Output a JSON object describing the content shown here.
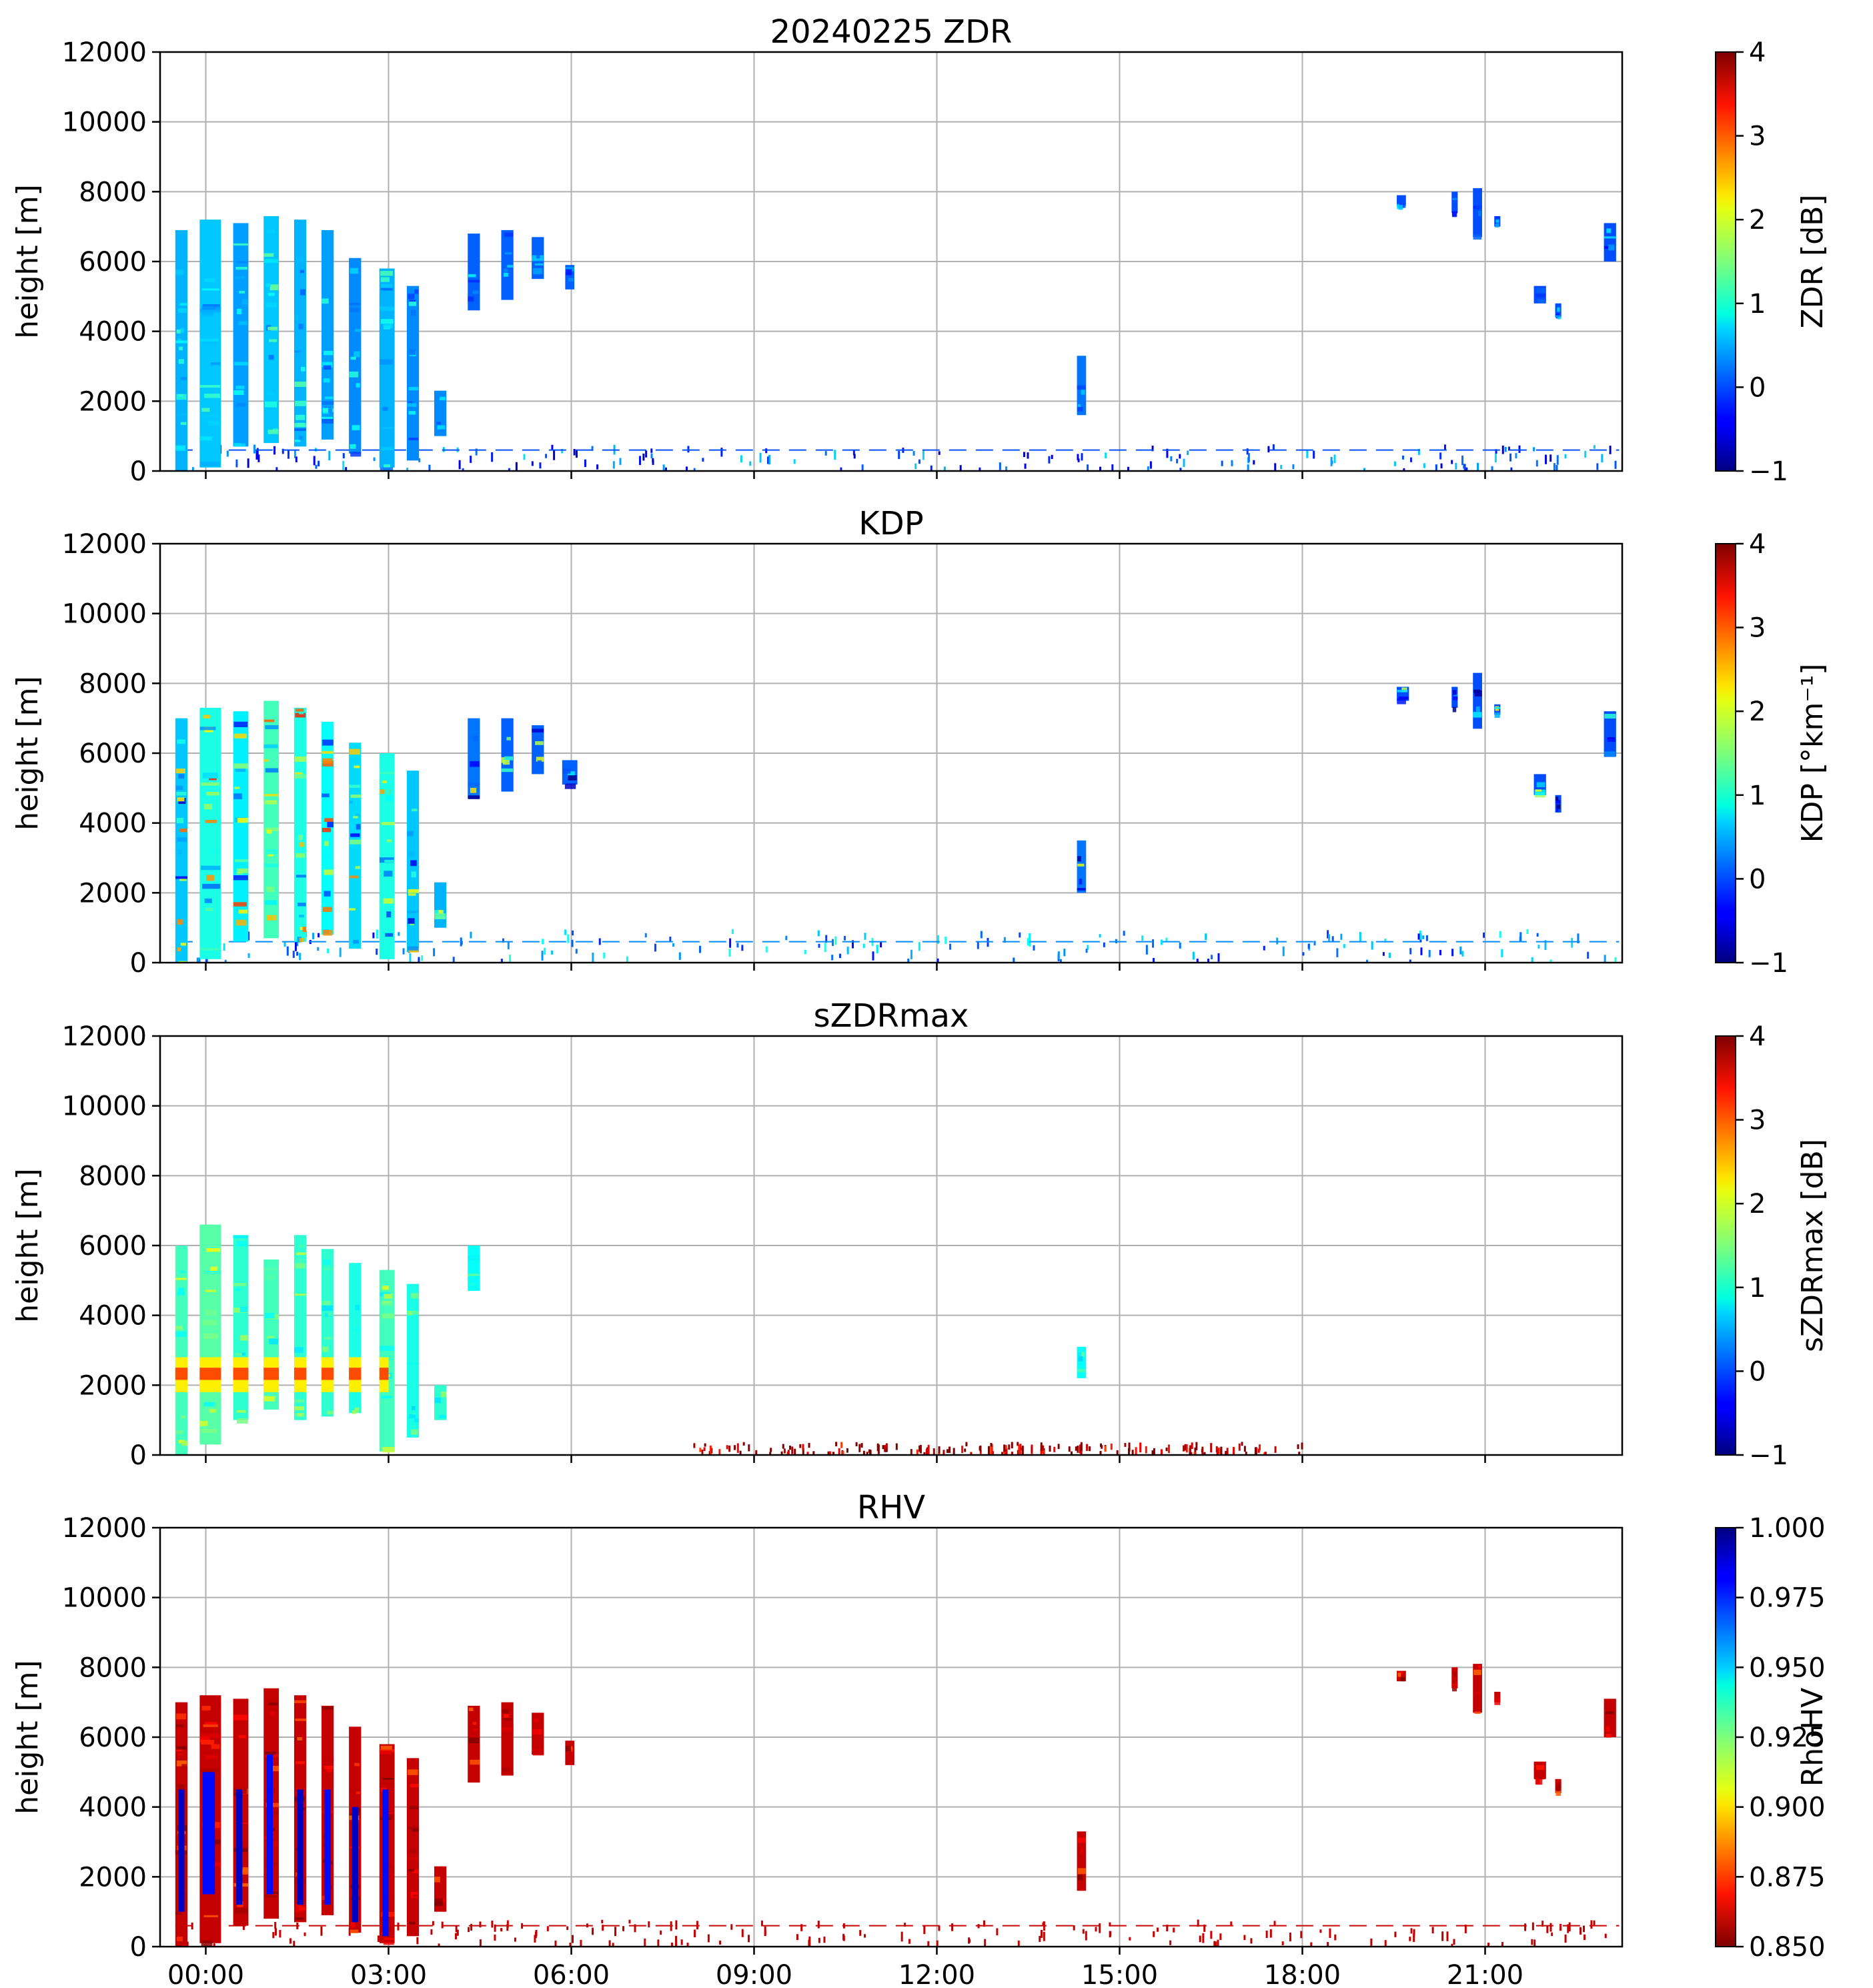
{
  "chart_data": [
    {
      "type": "heatmap",
      "title": "20240225 ZDR",
      "ylabel": "height [m]",
      "xlabel": "",
      "ylim": [
        0,
        12000
      ],
      "y_ticks": [
        "0",
        "2000",
        "4000",
        "6000",
        "8000",
        "10000",
        "12000"
      ],
      "x_range_hours": [
        -0.75,
        23.25
      ],
      "x_ticks": [
        "00:00",
        "03:00",
        "06:00",
        "09:00",
        "12:00",
        "15:00",
        "18:00",
        "21:00"
      ],
      "show_xtick_labels": false,
      "grid": true,
      "colorbar": {
        "label": "ZDR [dB]",
        "range": [
          -1,
          4
        ],
        "ticks": [
          "−1",
          "0",
          "1",
          "2",
          "3",
          "4"
        ],
        "reversed": false
      },
      "echo_blocks": [
        {
          "t0": -0.5,
          "t1": -0.3,
          "h0": 0,
          "h1": 6900,
          "value": 0.5
        },
        {
          "t0": -0.1,
          "t1": 0.25,
          "h0": 100,
          "h1": 7200,
          "value": 0.6
        },
        {
          "t0": 0.45,
          "t1": 0.7,
          "h0": 700,
          "h1": 7100,
          "value": 0.4
        },
        {
          "t0": 0.95,
          "t1": 1.2,
          "h0": 800,
          "h1": 7300,
          "value": 0.6
        },
        {
          "t0": 1.45,
          "t1": 1.65,
          "h0": 700,
          "h1": 7200,
          "value": 0.5
        },
        {
          "t0": 1.9,
          "t1": 2.1,
          "h0": 900,
          "h1": 6900,
          "value": 0.4
        },
        {
          "t0": 2.35,
          "t1": 2.55,
          "h0": 500,
          "h1": 6100,
          "value": 0.3
        },
        {
          "t0": 2.85,
          "t1": 3.1,
          "h0": 100,
          "h1": 5800,
          "value": 0.5
        },
        {
          "t0": 3.3,
          "t1": 3.5,
          "h0": 300,
          "h1": 5300,
          "value": 0.3
        },
        {
          "t0": 3.75,
          "t1": 3.95,
          "h0": 1000,
          "h1": 2300,
          "value": 0.3
        },
        {
          "t0": 4.3,
          "t1": 4.5,
          "h0": 4600,
          "h1": 6800,
          "value": 0.1
        },
        {
          "t0": 4.85,
          "t1": 5.05,
          "h0": 4900,
          "h1": 6900,
          "value": 0.1
        },
        {
          "t0": 5.35,
          "t1": 5.55,
          "h0": 5500,
          "h1": 6700,
          "value": 0.1
        },
        {
          "t0": 5.9,
          "t1": 6.05,
          "h0": 5200,
          "h1": 5900,
          "value": 0.1
        },
        {
          "t0": 14.3,
          "t1": 14.45,
          "h0": 1600,
          "h1": 3300,
          "value": 0.2
        },
        {
          "t0": 19.55,
          "t1": 19.7,
          "h0": 7600,
          "h1": 7900,
          "value": 0.0
        },
        {
          "t0": 20.45,
          "t1": 20.55,
          "h0": 7400,
          "h1": 8000,
          "value": 0.0
        },
        {
          "t0": 20.8,
          "t1": 20.95,
          "h0": 6700,
          "h1": 8100,
          "value": 0.0
        },
        {
          "t0": 21.15,
          "t1": 21.25,
          "h0": 7000,
          "h1": 7300,
          "value": 0.0
        },
        {
          "t0": 21.8,
          "t1": 22.0,
          "h0": 4800,
          "h1": 5300,
          "value": 0.0
        },
        {
          "t0": 22.15,
          "t1": 22.25,
          "h0": 4400,
          "h1": 4800,
          "value": 0.0
        },
        {
          "t0": 22.95,
          "t1": 23.15,
          "h0": 6000,
          "h1": 7100,
          "value": 0.0
        }
      ],
      "low_level_band": {
        "t0": -0.5,
        "t1": 23.2,
        "h0": 0,
        "h1": 700,
        "value": 0.0
      }
    },
    {
      "type": "heatmap",
      "title": "KDP",
      "ylabel": "height [m]",
      "xlabel": "",
      "ylim": [
        0,
        12000
      ],
      "y_ticks": [
        "0",
        "2000",
        "4000",
        "6000",
        "8000",
        "10000",
        "12000"
      ],
      "x_range_hours": [
        -0.75,
        23.25
      ],
      "x_ticks": [
        "00:00",
        "03:00",
        "06:00",
        "09:00",
        "12:00",
        "15:00",
        "18:00",
        "21:00"
      ],
      "show_xtick_labels": false,
      "grid": true,
      "colorbar": {
        "label": "KDP [°km⁻¹]",
        "range": [
          -1,
          4
        ],
        "ticks": [
          "−1",
          "0",
          "1",
          "2",
          "3",
          "4"
        ],
        "reversed": false
      },
      "echo_blocks": [
        {
          "t0": -0.5,
          "t1": -0.3,
          "h0": 0,
          "h1": 7000,
          "value": 0.6
        },
        {
          "t0": -0.1,
          "t1": 0.25,
          "h0": 100,
          "h1": 7300,
          "value": 1.0
        },
        {
          "t0": 0.45,
          "t1": 0.7,
          "h0": 600,
          "h1": 7200,
          "value": 0.8
        },
        {
          "t0": 0.95,
          "t1": 1.2,
          "h0": 700,
          "h1": 7500,
          "value": 1.2
        },
        {
          "t0": 1.45,
          "t1": 1.65,
          "h0": 600,
          "h1": 7300,
          "value": 1.0
        },
        {
          "t0": 1.9,
          "t1": 2.1,
          "h0": 800,
          "h1": 6900,
          "value": 0.9
        },
        {
          "t0": 2.35,
          "t1": 2.55,
          "h0": 400,
          "h1": 6300,
          "value": 0.7
        },
        {
          "t0": 2.85,
          "t1": 3.1,
          "h0": 100,
          "h1": 6000,
          "value": 1.0
        },
        {
          "t0": 3.3,
          "t1": 3.5,
          "h0": 300,
          "h1": 5500,
          "value": 0.6
        },
        {
          "t0": 3.75,
          "t1": 3.95,
          "h0": 1000,
          "h1": 2300,
          "value": 0.5
        },
        {
          "t0": 4.3,
          "t1": 4.5,
          "h0": 4700,
          "h1": 7000,
          "value": 0.2
        },
        {
          "t0": 4.85,
          "t1": 5.05,
          "h0": 4900,
          "h1": 7000,
          "value": 0.1
        },
        {
          "t0": 5.35,
          "t1": 5.55,
          "h0": 5400,
          "h1": 6800,
          "value": 0.1
        },
        {
          "t0": 5.85,
          "t1": 6.1,
          "h0": 5100,
          "h1": 5800,
          "value": 0.1
        },
        {
          "t0": 14.3,
          "t1": 14.45,
          "h0": 2000,
          "h1": 3500,
          "value": 0.2
        },
        {
          "t0": 19.55,
          "t1": 19.75,
          "h0": 7500,
          "h1": 7900,
          "value": 0.0
        },
        {
          "t0": 20.45,
          "t1": 20.55,
          "h0": 7300,
          "h1": 7900,
          "value": 0.0
        },
        {
          "t0": 20.8,
          "t1": 20.95,
          "h0": 6700,
          "h1": 8300,
          "value": 0.0
        },
        {
          "t0": 21.15,
          "t1": 21.25,
          "h0": 7100,
          "h1": 7400,
          "value": 0.0
        },
        {
          "t0": 21.8,
          "t1": 22.0,
          "h0": 4800,
          "h1": 5400,
          "value": 0.0
        },
        {
          "t0": 22.15,
          "t1": 22.25,
          "h0": 4300,
          "h1": 4800,
          "value": 0.0
        },
        {
          "t0": 22.95,
          "t1": 23.15,
          "h0": 5900,
          "h1": 7200,
          "value": 0.0
        }
      ],
      "low_level_band": {
        "t0": -0.5,
        "t1": 23.2,
        "h0": 0,
        "h1": 900,
        "value": 0.3
      }
    },
    {
      "type": "heatmap",
      "title": "sZDRmax",
      "ylabel": "height [m]",
      "xlabel": "",
      "ylim": [
        0,
        12000
      ],
      "y_ticks": [
        "0",
        "2000",
        "4000",
        "6000",
        "8000",
        "10000",
        "12000"
      ],
      "x_range_hours": [
        -0.75,
        23.25
      ],
      "x_ticks": [
        "00:00",
        "03:00",
        "06:00",
        "09:00",
        "12:00",
        "15:00",
        "18:00",
        "21:00"
      ],
      "show_xtick_labels": false,
      "grid": true,
      "colorbar": {
        "label": "sZDRmax [dB]",
        "range": [
          -1,
          4
        ],
        "ticks": [
          "−1",
          "0",
          "1",
          "2",
          "3",
          "4"
        ],
        "reversed": false
      },
      "echo_blocks": [
        {
          "t0": -0.5,
          "t1": -0.3,
          "h0": 0,
          "h1": 6000,
          "value": 1.2
        },
        {
          "t0": -0.1,
          "t1": 0.25,
          "h0": 300,
          "h1": 6600,
          "value": 1.3
        },
        {
          "t0": 0.45,
          "t1": 0.7,
          "h0": 1000,
          "h1": 6300,
          "value": 1.1
        },
        {
          "t0": 0.95,
          "t1": 1.2,
          "h0": 1300,
          "h1": 5600,
          "value": 1.2
        },
        {
          "t0": 1.45,
          "t1": 1.65,
          "h0": 1000,
          "h1": 6300,
          "value": 1.1
        },
        {
          "t0": 1.9,
          "t1": 2.1,
          "h0": 1100,
          "h1": 5900,
          "value": 1.1
        },
        {
          "t0": 2.35,
          "t1": 2.55,
          "h0": 1200,
          "h1": 5500,
          "value": 1.0
        },
        {
          "t0": 2.85,
          "t1": 3.1,
          "h0": 100,
          "h1": 5300,
          "value": 1.2
        },
        {
          "t0": 3.3,
          "t1": 3.5,
          "h0": 500,
          "h1": 4900,
          "value": 1.0
        },
        {
          "t0": 3.75,
          "t1": 3.95,
          "h0": 1000,
          "h1": 2000,
          "value": 1.1
        },
        {
          "t0": 4.3,
          "t1": 4.5,
          "h0": 4700,
          "h1": 6000,
          "value": 0.9
        },
        {
          "t0": 14.3,
          "t1": 14.45,
          "h0": 2200,
          "h1": 3100,
          "value": 0.9
        }
      ],
      "bright_band": {
        "t0": -0.5,
        "t1": 3.0,
        "h0": 1800,
        "h1": 2800,
        "value": 3.0
      },
      "low_level_band": {
        "t0": 8.0,
        "t1": 18.0,
        "h0": 0,
        "h1": 300,
        "value": 3.8
      }
    },
    {
      "type": "heatmap",
      "title": "RHV",
      "ylabel": "height [m]",
      "xlabel": "",
      "ylim": [
        0,
        12000
      ],
      "y_ticks": [
        "0",
        "2000",
        "4000",
        "6000",
        "8000",
        "10000",
        "12000"
      ],
      "x_range_hours": [
        -0.75,
        23.25
      ],
      "x_ticks": [
        "00:00",
        "03:00",
        "06:00",
        "09:00",
        "12:00",
        "15:00",
        "18:00",
        "21:00"
      ],
      "show_xtick_labels": true,
      "grid": true,
      "colorbar": {
        "label": "RhoHV",
        "range": [
          0.85,
          1.0
        ],
        "ticks": [
          "0.850",
          "0.875",
          "0.900",
          "0.925",
          "0.950",
          "0.975",
          "1.000"
        ],
        "reversed": true
      },
      "echo_blocks": [
        {
          "t0": -0.5,
          "t1": -0.3,
          "h0": 0,
          "h1": 7000,
          "value": 0.86
        },
        {
          "t0": -0.1,
          "t1": 0.25,
          "h0": 100,
          "h1": 7200,
          "value": 0.86
        },
        {
          "t0": 0.45,
          "t1": 0.7,
          "h0": 600,
          "h1": 7100,
          "value": 0.86
        },
        {
          "t0": 0.95,
          "t1": 1.2,
          "h0": 800,
          "h1": 7400,
          "value": 0.86
        },
        {
          "t0": 1.45,
          "t1": 1.65,
          "h0": 700,
          "h1": 7200,
          "value": 0.86
        },
        {
          "t0": 1.9,
          "t1": 2.1,
          "h0": 900,
          "h1": 6900,
          "value": 0.86
        },
        {
          "t0": 2.35,
          "t1": 2.55,
          "h0": 400,
          "h1": 6300,
          "value": 0.86
        },
        {
          "t0": 2.85,
          "t1": 3.1,
          "h0": 100,
          "h1": 5800,
          "value": 0.86
        },
        {
          "t0": 3.3,
          "t1": 3.5,
          "h0": 300,
          "h1": 5400,
          "value": 0.86
        },
        {
          "t0": 3.75,
          "t1": 3.95,
          "h0": 1000,
          "h1": 2300,
          "value": 0.86
        },
        {
          "t0": 4.3,
          "t1": 4.5,
          "h0": 4700,
          "h1": 6900,
          "value": 0.86
        },
        {
          "t0": 4.85,
          "t1": 5.05,
          "h0": 4900,
          "h1": 7000,
          "value": 0.86
        },
        {
          "t0": 5.35,
          "t1": 5.55,
          "h0": 5500,
          "h1": 6700,
          "value": 0.86
        },
        {
          "t0": 5.9,
          "t1": 6.05,
          "h0": 5200,
          "h1": 5900,
          "value": 0.86
        },
        {
          "t0": 14.3,
          "t1": 14.45,
          "h0": 1600,
          "h1": 3300,
          "value": 0.86
        },
        {
          "t0": 19.55,
          "t1": 19.7,
          "h0": 7600,
          "h1": 7900,
          "value": 0.86
        },
        {
          "t0": 20.45,
          "t1": 20.55,
          "h0": 7400,
          "h1": 8000,
          "value": 0.86
        },
        {
          "t0": 20.8,
          "t1": 20.95,
          "h0": 6700,
          "h1": 8100,
          "value": 0.86
        },
        {
          "t0": 21.15,
          "t1": 21.25,
          "h0": 7000,
          "h1": 7300,
          "value": 0.86
        },
        {
          "t0": 21.8,
          "t1": 22.0,
          "h0": 4800,
          "h1": 5300,
          "value": 0.86
        },
        {
          "t0": 22.15,
          "t1": 22.25,
          "h0": 4400,
          "h1": 4800,
          "value": 0.86
        },
        {
          "t0": 22.95,
          "t1": 23.15,
          "h0": 6000,
          "h1": 7100,
          "value": 0.86
        }
      ],
      "inner_blocks": [
        {
          "t0": -0.45,
          "t1": -0.35,
          "h0": 1000,
          "h1": 4500,
          "value": 0.99
        },
        {
          "t0": -0.05,
          "t1": 0.15,
          "h0": 1500,
          "h1": 5000,
          "value": 0.98
        },
        {
          "t0": 0.5,
          "t1": 0.6,
          "h0": 1200,
          "h1": 4500,
          "value": 0.99
        },
        {
          "t0": 1.0,
          "t1": 1.1,
          "h0": 1500,
          "h1": 5500,
          "value": 0.98
        },
        {
          "t0": 1.5,
          "t1": 1.6,
          "h0": 1200,
          "h1": 4500,
          "value": 0.99
        },
        {
          "t0": 1.95,
          "t1": 2.05,
          "h0": 1200,
          "h1": 4500,
          "value": 0.98
        },
        {
          "t0": 2.4,
          "t1": 2.5,
          "h0": 700,
          "h1": 4000,
          "value": 0.99
        },
        {
          "t0": 2.9,
          "t1": 3.0,
          "h0": 300,
          "h1": 4500,
          "value": 0.98
        }
      ],
      "low_level_band": {
        "t0": -0.5,
        "t1": 23.2,
        "h0": 0,
        "h1": 700,
        "value": 0.86
      }
    }
  ]
}
